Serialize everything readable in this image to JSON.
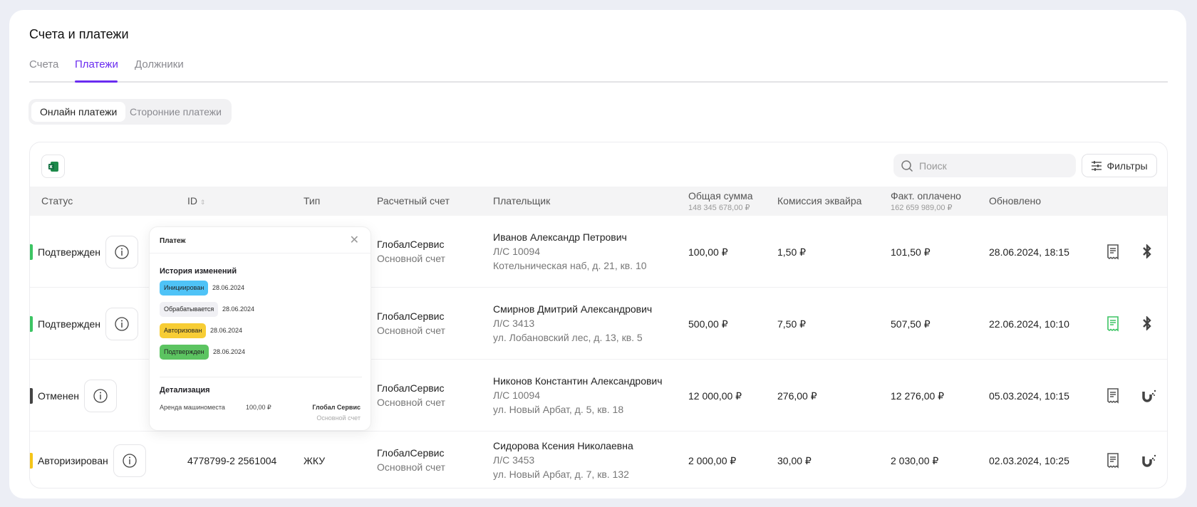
{
  "header": {
    "title": "Счета и платежи"
  },
  "tabs": [
    {
      "label": "Счета"
    },
    {
      "label": "Платежи",
      "active": true
    },
    {
      "label": "Должники"
    }
  ],
  "segments": [
    {
      "label": "Онлайн платежи",
      "active": true
    },
    {
      "label": "Сторонние платежи"
    }
  ],
  "toolbar": {
    "search_placeholder": "Поиск",
    "filters_label": "Фильтры"
  },
  "columns": {
    "status": "Статус",
    "id": "ID",
    "type": "Тип",
    "account": "Расчетный счет",
    "payer": "Плательщик",
    "total": "Общая сумма",
    "total_sum": "148 345 678,00 ₽",
    "commission": "Комиссия эквайра",
    "paid": "Факт. оплачено",
    "paid_sum": "162 659 989,00 ₽",
    "updated": "Обновлено"
  },
  "rows": [
    {
      "status": "Подтвержден",
      "status_color": "#3cc463",
      "id": "",
      "type": "",
      "account": "ГлобалСервис",
      "account_sub": "Основной счет",
      "payer": "Иванов Александр Петрович",
      "ls": "Л/С 10094",
      "address": "Котельническая наб, д. 21, кв. 10",
      "total": "100,00 ₽",
      "commission": "1,50 ₽",
      "paid": "101,50 ₽",
      "updated": "28.06.2024, 18:15",
      "receipt_color": "#555",
      "method": "bluetooth-icon"
    },
    {
      "status": "Подтвержден",
      "status_color": "#3cc463",
      "id": "",
      "type": "",
      "account": "ГлобалСервис",
      "account_sub": "Основной счет",
      "payer": "Смирнов Дмитрий Александрович",
      "ls": "Л/С 3413",
      "address": "ул. Лобановский лес, д. 13, кв. 5",
      "total": "500,00 ₽",
      "commission": "7,50 ₽",
      "paid": "507,50 ₽",
      "updated": "22.06.2024, 10:10",
      "receipt_color": "#3cc463",
      "method": "bluetooth-icon"
    },
    {
      "status": "Отменен",
      "status_color": "#444",
      "id": "",
      "type": "",
      "account": "ГлобалСервис",
      "account_sub": "Основной счет",
      "payer": "Никонов Константин Александрович",
      "ls": "Л/С 10094",
      "address": "ул. Новый Арбат, д. 5, кв. 18",
      "total": "12 000,00 ₽",
      "commission": "276,00 ₽",
      "paid": "12 276,00 ₽",
      "updated": "05.03.2024, 10:15",
      "receipt_color": "#555",
      "method": "u-logo-icon"
    },
    {
      "status": "Авторизирован",
      "status_color": "#f5c518",
      "id": "4778799-2 2561004",
      "type": "ЖКУ",
      "account": "ГлобалСервис",
      "account_sub": "Основной счет",
      "payer": "Сидорова Ксения Николаевна",
      "ls": "Л/С 3453",
      "address": "ул. Новый Арбат, д. 7, кв. 132",
      "total": "2 000,00 ₽",
      "commission": "30,00 ₽",
      "paid": "2 030,00 ₽",
      "updated": "02.03.2024, 10:25",
      "receipt_color": "#555",
      "method": "u-logo-icon"
    }
  ],
  "popup": {
    "title": "Платеж",
    "history_title": "История изменений",
    "history": [
      {
        "label": "Инициирован",
        "date": "28.06.2024",
        "color": "#4fc3f7"
      },
      {
        "label": "Обрабатывается",
        "date": "28.06.2024",
        "color": "#f0f0f4"
      },
      {
        "label": "Авторизован",
        "date": "28.06.2024",
        "color": "#f7cd35"
      },
      {
        "label": "Подтвержден",
        "date": "28.06.2024",
        "color": "#5cc461"
      }
    ],
    "details_title": "Детализация",
    "details": {
      "item": "Аренда машиноместа",
      "amount": "100,00 ₽",
      "company": "Глобал Сервис",
      "account": "Основной счет"
    }
  },
  "colors": {
    "accent": "#6a2cf0"
  }
}
